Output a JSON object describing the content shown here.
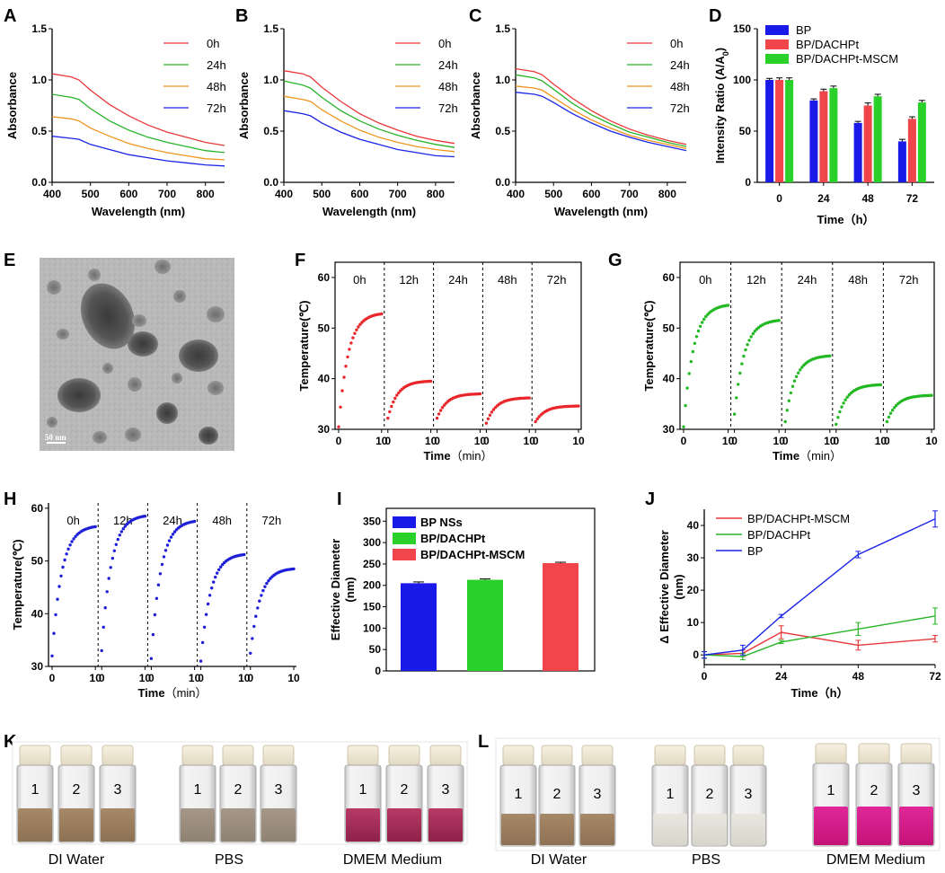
{
  "panel_letters": {
    "A": "A",
    "B": "B",
    "C": "C",
    "D": "D",
    "E": "E",
    "F": "F",
    "G": "G",
    "H": "H",
    "I": "I",
    "J": "J",
    "K": "K",
    "L": "L"
  },
  "colors": {
    "red": "#e8373a",
    "green": "#28b428",
    "orange": "#f0951e",
    "blue": "#1a24e6",
    "redbar": "#f0464b",
    "greenbar": "#2ad12a",
    "bluebar": "#1a1ae8",
    "redpt": "#e8262b",
    "greenpt": "#22b822",
    "bluept": "#1d1fd8"
  },
  "tem": {
    "scale_label": "50 nm"
  },
  "photos": {
    "K": {
      "captions": [
        "DI Water",
        "PBS",
        "DMEM Medium"
      ],
      "vial_numbers": [
        "1",
        "2",
        "3"
      ]
    },
    "L": {
      "captions": [
        "DI Water",
        "PBS",
        "DMEM Medium"
      ],
      "vial_numbers": [
        "1",
        "2",
        "3"
      ]
    }
  },
  "chart_data": [
    {
      "id": "A",
      "type": "line",
      "xlabel": "Wavelength (nm)",
      "ylabel": "Absorbance",
      "xlim": [
        400,
        850
      ],
      "ylim": [
        0,
        1.5
      ],
      "xticks": [
        400,
        500,
        600,
        700,
        800
      ],
      "yticks": [
        0.0,
        0.5,
        1.0,
        1.5
      ],
      "x": [
        400,
        450,
        470,
        500,
        550,
        600,
        650,
        700,
        750,
        800,
        850
      ],
      "series": [
        {
          "name": "0h",
          "color": "#e8373a",
          "values": [
            1.06,
            1.03,
            1.0,
            0.9,
            0.76,
            0.65,
            0.56,
            0.49,
            0.44,
            0.39,
            0.36
          ]
        },
        {
          "name": "24h",
          "color": "#28b428",
          "values": [
            0.86,
            0.83,
            0.81,
            0.72,
            0.6,
            0.51,
            0.44,
            0.39,
            0.35,
            0.31,
            0.29
          ]
        },
        {
          "name": "48h",
          "color": "#f0951e",
          "values": [
            0.64,
            0.62,
            0.6,
            0.53,
            0.45,
            0.38,
            0.33,
            0.29,
            0.26,
            0.23,
            0.22
          ]
        },
        {
          "name": "72h",
          "color": "#1a24e6",
          "values": [
            0.45,
            0.43,
            0.42,
            0.37,
            0.32,
            0.27,
            0.24,
            0.21,
            0.19,
            0.17,
            0.16
          ]
        }
      ]
    },
    {
      "id": "B",
      "type": "line",
      "xlabel": "Wavelength (nm)",
      "ylabel": "Absorbance",
      "xlim": [
        400,
        850
      ],
      "ylim": [
        0,
        1.5
      ],
      "xticks": [
        400,
        500,
        600,
        700,
        800
      ],
      "yticks": [
        0.0,
        0.5,
        1.0,
        1.5
      ],
      "x": [
        400,
        450,
        470,
        500,
        550,
        600,
        650,
        700,
        750,
        800,
        850
      ],
      "series": [
        {
          "name": "0h",
          "color": "#e8373a",
          "values": [
            1.09,
            1.06,
            1.03,
            0.93,
            0.79,
            0.67,
            0.58,
            0.51,
            0.45,
            0.41,
            0.38
          ]
        },
        {
          "name": "24h",
          "color": "#28b428",
          "values": [
            0.99,
            0.95,
            0.92,
            0.83,
            0.7,
            0.6,
            0.52,
            0.46,
            0.41,
            0.37,
            0.34
          ]
        },
        {
          "name": "48h",
          "color": "#f0951e",
          "values": [
            0.84,
            0.81,
            0.79,
            0.71,
            0.6,
            0.51,
            0.44,
            0.39,
            0.35,
            0.32,
            0.3
          ]
        },
        {
          "name": "72h",
          "color": "#1a24e6",
          "values": [
            0.7,
            0.67,
            0.65,
            0.58,
            0.49,
            0.42,
            0.37,
            0.32,
            0.29,
            0.26,
            0.25
          ]
        }
      ]
    },
    {
      "id": "C",
      "type": "line",
      "xlabel": "Wavelength (nm)",
      "ylabel": "Absorbance",
      "xlim": [
        400,
        850
      ],
      "ylim": [
        0,
        1.5
      ],
      "xticks": [
        400,
        500,
        600,
        700,
        800
      ],
      "yticks": [
        0.0,
        0.5,
        1.0,
        1.5
      ],
      "x": [
        400,
        450,
        470,
        500,
        550,
        600,
        650,
        700,
        750,
        800,
        850
      ],
      "series": [
        {
          "name": "0h",
          "color": "#e8373a",
          "values": [
            1.11,
            1.08,
            1.05,
            0.96,
            0.82,
            0.7,
            0.6,
            0.52,
            0.46,
            0.41,
            0.37
          ]
        },
        {
          "name": "24h",
          "color": "#28b428",
          "values": [
            1.05,
            1.02,
            0.99,
            0.91,
            0.77,
            0.66,
            0.57,
            0.49,
            0.44,
            0.39,
            0.35
          ]
        },
        {
          "name": "48h",
          "color": "#f0951e",
          "values": [
            0.94,
            0.92,
            0.9,
            0.83,
            0.71,
            0.61,
            0.53,
            0.46,
            0.41,
            0.37,
            0.33
          ]
        },
        {
          "name": "72h",
          "color": "#1a24e6",
          "values": [
            0.88,
            0.86,
            0.84,
            0.78,
            0.67,
            0.58,
            0.5,
            0.44,
            0.39,
            0.35,
            0.31
          ]
        }
      ]
    },
    {
      "id": "D",
      "type": "bar",
      "xlabel": "Time（h）",
      "ylabel": "Intensity Ratio (A/A",
      "ylabel_sub": "0",
      "ylabel_end": ")",
      "categories": [
        "0",
        "24",
        "48",
        "72"
      ],
      "ylim": [
        0,
        150
      ],
      "yticks": [
        0,
        50,
        100,
        150
      ],
      "series": [
        {
          "name": "BP",
          "color": "#1a1ae8",
          "values": [
            100,
            80,
            58,
            40
          ],
          "errors": [
            1.5,
            1.5,
            1.5,
            2
          ]
        },
        {
          "name": "BP/DACHPt",
          "color": "#f0464b",
          "values": [
            100,
            89,
            75,
            62
          ],
          "errors": [
            2,
            2,
            2.5,
            2
          ]
        },
        {
          "name": "BP/DACHPt-MSCM",
          "color": "#2ad12a",
          "values": [
            100,
            92,
            84,
            78
          ],
          "errors": [
            2,
            2,
            2,
            2
          ]
        }
      ]
    },
    {
      "id": "F",
      "type": "scatter",
      "xlabel": "Time",
      "xlabel_unit": "（min）",
      "ylabel": "Temperature(℃)",
      "color": "#e8262b",
      "ylim": [
        30,
        63
      ],
      "yticks": [
        30,
        40,
        50,
        60
      ],
      "segment_xticks": [
        0,
        10
      ],
      "segments": [
        {
          "label": "0h",
          "start": 30.5,
          "end": 52.8
        },
        {
          "label": "12h",
          "start": 32.2,
          "end": 39.5
        },
        {
          "label": "24h",
          "start": 32.2,
          "end": 37.0
        },
        {
          "label": "48h",
          "start": 31.2,
          "end": 36.2
        },
        {
          "label": "72h",
          "start": 31.5,
          "end": 34.6
        }
      ]
    },
    {
      "id": "G",
      "type": "scatter",
      "xlabel": "Time",
      "xlabel_unit": "（min）",
      "ylabel": "Temperature(℃)",
      "color": "#22b822",
      "ylim": [
        30,
        63
      ],
      "yticks": [
        30,
        40,
        50,
        60
      ],
      "segment_xticks": [
        0,
        10
      ],
      "segments": [
        {
          "label": "0h",
          "start": 30.5,
          "end": 54.5
        },
        {
          "label": "12h",
          "start": 33.0,
          "end": 51.5
        },
        {
          "label": "24h",
          "start": 31.5,
          "end": 44.5
        },
        {
          "label": "48h",
          "start": 31.0,
          "end": 38.8
        },
        {
          "label": "72h",
          "start": 31.5,
          "end": 36.7
        }
      ]
    },
    {
      "id": "H",
      "type": "scatter",
      "xlabel": "Time",
      "xlabel_unit": "（min）",
      "ylabel": "Temperature(℃)",
      "color": "#1d1fd8",
      "ylim": [
        30,
        61
      ],
      "yticks": [
        30,
        40,
        50,
        60
      ],
      "segment_xticks": [
        0,
        10
      ],
      "segments": [
        {
          "label": "0h",
          "start": 32.0,
          "end": 56.5
        },
        {
          "label": "12h",
          "start": 33.0,
          "end": 58.5
        },
        {
          "label": "24h",
          "start": 31.5,
          "end": 57.5
        },
        {
          "label": "48h",
          "start": 31.0,
          "end": 51.2
        },
        {
          "label": "72h",
          "start": 32.5,
          "end": 48.5
        }
      ]
    },
    {
      "id": "I",
      "type": "bar",
      "ylabel": "Effective Diameter",
      "ylabel2": "(nm)",
      "ylim": [
        0,
        380
      ],
      "yticks": [
        0,
        50,
        100,
        150,
        200,
        250,
        300,
        350
      ],
      "categories": [
        "BP NSs",
        "BP/DACHPt",
        "BP/DACHPt-MSCM"
      ],
      "values": [
        205,
        213,
        252
      ],
      "errors": [
        3,
        2,
        2
      ],
      "colors": [
        "#1a1ae8",
        "#2ad12a",
        "#f0464b"
      ]
    },
    {
      "id": "J",
      "type": "line",
      "xlabel": "Time（h）",
      "ylabel": "Δ Effective Diameter",
      "ylabel2": "(nm)",
      "xlim": [
        0,
        72
      ],
      "ylim": [
        -3,
        45
      ],
      "xticks": [
        0,
        24,
        48,
        72
      ],
      "yticks": [
        0,
        10,
        20,
        30,
        40
      ],
      "x": [
        0,
        12,
        24,
        48,
        72
      ],
      "series": [
        {
          "name": "BP/DACHPt-MSCM",
          "color": "#e8373a",
          "values": [
            0,
            0.5,
            7,
            3,
            5
          ],
          "errors": [
            1,
            1,
            2,
            1.5,
            1
          ]
        },
        {
          "name": "BP/DACHPt",
          "color": "#28b428",
          "values": [
            0,
            -0.5,
            4,
            8,
            12
          ],
          "errors": [
            1,
            1,
            0.5,
            2,
            2.5
          ]
        },
        {
          "name": "BP",
          "color": "#1a24e6",
          "values": [
            0,
            1.5,
            12,
            31,
            42
          ],
          "errors": [
            1,
            1.5,
            0.5,
            1,
            2.5
          ]
        }
      ]
    }
  ]
}
